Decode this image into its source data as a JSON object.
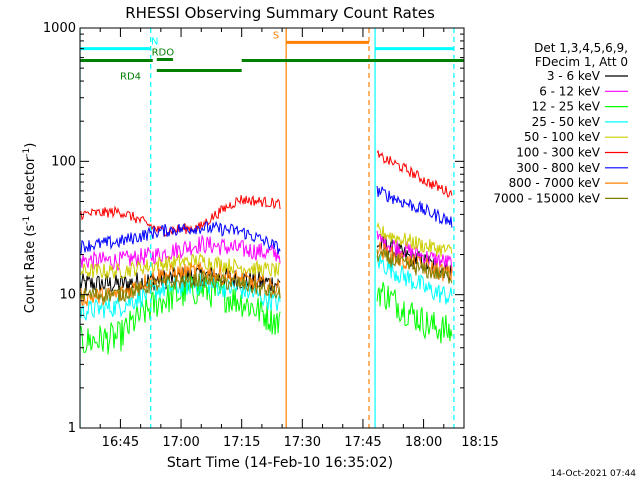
{
  "chart_data": {
    "type": "line",
    "title": "RHESSI Observing Summary Count Rates",
    "xlabel": "Start Time (14-Feb-10 16:35:02)",
    "ylabel_main": "Count Rate (s",
    "ylabel_sup1": "-1",
    "ylabel_mid": " detector",
    "ylabel_sup2": "-1",
    "ylabel_end": ")",
    "yscale": "log",
    "ylim": [
      1,
      1000
    ],
    "xlim_min": [
      0,
      95
    ],
    "x_ticks": [
      {
        "min": 10,
        "label": "16:45"
      },
      {
        "min": 25,
        "label": "17:00"
      },
      {
        "min": 40,
        "label": "17:15"
      },
      {
        "min": 55,
        "label": "17:30"
      },
      {
        "min": 70,
        "label": "17:45"
      },
      {
        "min": 85,
        "label": "18:00"
      },
      {
        "min": 100,
        "label": "18:15"
      }
    ],
    "y_ticks": [
      {
        "value": 1,
        "label": "1"
      },
      {
        "value": 10,
        "label": "10"
      },
      {
        "value": 100,
        "label": "100"
      },
      {
        "value": 1000,
        "label": "1000"
      }
    ],
    "legend_header": [
      "Det 1,3,4,5,6,9,",
      "FDecim 1, Att 0"
    ],
    "series": [
      {
        "name": "3 - 6 keV",
        "color": "#000000",
        "seg1": [
          12,
          12,
          13,
          14,
          13,
          12
        ],
        "seg2": [
          24,
          20,
          17,
          15
        ],
        "noise": 0.08
      },
      {
        "name": "6 - 12 keV",
        "color": "#ff00ff",
        "seg1": [
          18,
          18,
          20,
          24,
          22,
          20
        ],
        "seg2": [
          26,
          22,
          19,
          17
        ],
        "noise": 0.07
      },
      {
        "name": "12 - 25 keV",
        "color": "#00ff00",
        "seg1": [
          4.4,
          4.8,
          9,
          11,
          9,
          6
        ],
        "seg2": [
          11,
          8,
          6,
          5.2
        ],
        "noise": 0.12
      },
      {
        "name": "25 - 50 keV",
        "color": "#00ffff",
        "seg1": [
          7.5,
          8.2,
          11,
          12,
          11,
          8.5
        ],
        "seg2": [
          18,
          14,
          11,
          9.5
        ],
        "noise": 0.08
      },
      {
        "name": "50 - 100 keV",
        "color": "#cccc00",
        "seg1": [
          15,
          15,
          17,
          18,
          16,
          15
        ],
        "seg2": [
          30,
          26,
          23,
          21
        ],
        "noise": 0.06
      },
      {
        "name": "100 - 300 keV",
        "color": "#ff0000",
        "seg1": [
          40,
          42,
          30,
          32,
          52,
          48
        ],
        "seg2": [
          110,
          90,
          70,
          57
        ],
        "noise": 0.04
      },
      {
        "name": "300 - 800 keV",
        "color": "#0000ff",
        "seg1": [
          23,
          25,
          30,
          32,
          30,
          22
        ],
        "seg2": [
          60,
          50,
          42,
          35
        ],
        "noise": 0.05
      },
      {
        "name": "800 - 7000 keV",
        "color": "#ff8000",
        "seg1": [
          9.5,
          10,
          14,
          15,
          13,
          11
        ],
        "seg2": [
          22,
          18,
          16,
          14
        ],
        "noise": 0.07
      },
      {
        "name": "7000 - 15000 keV",
        "color": "#808000",
        "seg1": [
          10,
          10,
          12,
          13,
          12,
          10
        ],
        "seg2": [
          20,
          17,
          15,
          13.5
        ],
        "noise": 0.06
      }
    ],
    "data_ranges": [
      {
        "start": 0,
        "end": 49.5
      },
      {
        "start": 73.5,
        "end": 92
      }
    ],
    "vlines": [
      {
        "min": 0,
        "color": "#00ffff",
        "style": "solid"
      },
      {
        "min": 17.5,
        "color": "#00ffff",
        "style": "dashed"
      },
      {
        "min": 51,
        "color": "#ff8000",
        "style": "solid"
      },
      {
        "min": 71.5,
        "color": "#ff8000",
        "style": "dashed"
      },
      {
        "min": 73,
        "color": "#00ffff",
        "style": "solid"
      },
      {
        "min": 92.5,
        "color": "#00ffff",
        "style": "dashed"
      }
    ],
    "state_bars": [
      {
        "label": "N",
        "color": "#00ffff",
        "level": 700,
        "start": 0,
        "end": 17.5,
        "label_at": 18.5
      },
      {
        "label": "",
        "color": "#00ffff",
        "level": 700,
        "start": 73,
        "end": 92.5
      },
      {
        "label": "S",
        "color": "#ff8000",
        "level": 780,
        "start": 51,
        "end": 71.5,
        "label_at": 48.5
      },
      {
        "label": "",
        "color": "#008000",
        "level": 570,
        "start": 0,
        "end": 18
      },
      {
        "label": "RDO",
        "color": "#008000",
        "level": 580,
        "start": 19,
        "end": 23,
        "label_at": 20.5
      },
      {
        "label": "RD4",
        "color": "#008000",
        "level": 480,
        "start": 19,
        "end": 40,
        "label_at": 12.5
      },
      {
        "label": "",
        "color": "#008000",
        "level": 570,
        "start": 40,
        "end": 95
      }
    ],
    "timestamp": "14-Oct-2021 07:44"
  }
}
